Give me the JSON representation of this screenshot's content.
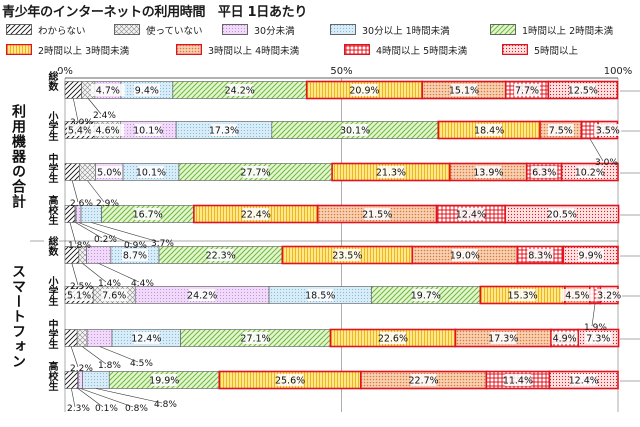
{
  "title": "青少年のインターネットの利用時間　平日 1日あたり",
  "legend": [
    {
      "label": "わからない",
      "pattern": "diag-black"
    },
    {
      "label": "使っていない",
      "pattern": "cross-grey"
    },
    {
      "label": "30分未満",
      "pattern": "dots-purple"
    },
    {
      "label": "30分以上 1時間未満",
      "pattern": "dots-blue"
    },
    {
      "label": "1時間以上 2時間未満",
      "pattern": "diag-green"
    },
    {
      "label": "2時間以上 3時間未満",
      "pattern": "vert-yellow"
    },
    {
      "label": "3時間以上 4時間未満",
      "pattern": "dots-orange"
    },
    {
      "label": "4時間以上 5時間未満",
      "pattern": "grid-red"
    },
    {
      "label": "5時間以上",
      "pattern": "dots-red"
    }
  ],
  "groups": [
    {
      "label": "利用機器の合計"
    },
    {
      "label": "スマートフォン"
    }
  ],
  "chart_data": {
    "type": "bar",
    "orientation": "horizontal-stacked-100",
    "x_ticks": [
      "0%",
      "50%",
      "100%"
    ],
    "xlim": [
      0,
      100
    ],
    "categories": [
      "総数",
      "小学生",
      "中学生",
      "高校生",
      "総数",
      "小学生",
      "中学生",
      "高校生"
    ],
    "category_groups": [
      "利用機器の合計",
      "利用機器の合計",
      "利用機器の合計",
      "利用機器の合計",
      "スマートフォン",
      "スマートフォン",
      "スマートフォン",
      "スマートフォン"
    ],
    "series": [
      {
        "name": "わからない",
        "values": [
          3.0,
          5.4,
          2.6,
          1.8,
          2.5,
          5.1,
          2.2,
          2.3
        ]
      },
      {
        "name": "使っていない",
        "values": [
          2.4,
          4.6,
          2.9,
          0.2,
          1.4,
          7.6,
          1.8,
          0.1
        ]
      },
      {
        "name": "30分未満",
        "values": [
          4.7,
          10.1,
          5.0,
          0.9,
          4.4,
          24.2,
          4.5,
          0.8
        ]
      },
      {
        "name": "30分以上 1時間未満",
        "values": [
          9.4,
          17.3,
          10.1,
          3.7,
          8.7,
          18.5,
          12.4,
          4.8
        ]
      },
      {
        "name": "1時間以上 2時間未満",
        "values": [
          24.2,
          30.1,
          27.7,
          16.7,
          22.3,
          19.7,
          27.1,
          19.9
        ]
      },
      {
        "name": "2時間以上 3時間未満",
        "values": [
          20.9,
          18.4,
          21.3,
          22.4,
          23.5,
          15.3,
          22.6,
          25.6
        ]
      },
      {
        "name": "3時間以上 4時間未満",
        "values": [
          15.1,
          7.5,
          13.9,
          21.5,
          19.0,
          4.5,
          17.3,
          22.7
        ]
      },
      {
        "name": "4時間以上 5時間未満",
        "values": [
          7.7,
          3.0,
          6.3,
          12.4,
          8.3,
          1.9,
          4.9,
          11.4
        ]
      },
      {
        "name": "5時間以上",
        "values": [
          12.5,
          3.5,
          10.2,
          20.5,
          9.9,
          3.2,
          7.3,
          12.4
        ]
      }
    ],
    "bar_labels": [
      [
        {
          "t": "3.0%",
          "ext": 1
        },
        {
          "t": "2.4%",
          "ext": 1
        },
        {
          "t": "4.7%"
        },
        {
          "t": "9.4%"
        },
        {
          "t": "24.2%"
        },
        {
          "t": "20.9%"
        },
        {
          "t": "15.1%"
        },
        {
          "t": "7.7%"
        },
        {
          "t": "12.5%"
        }
      ],
      [
        {
          "t": "5.4%"
        },
        {
          "t": "4.6%"
        },
        {
          "t": "10.1%"
        },
        {
          "t": "17.3%"
        },
        {
          "t": "30.1%"
        },
        {
          "t": "18.4%"
        },
        {
          "t": "7.5%"
        },
        {
          "t": "3.0%",
          "ext": 1
        },
        {
          "t": "3.5%"
        }
      ],
      [
        {
          "t": "2.6%",
          "ext": 1
        },
        {
          "t": "2.9%",
          "ext": 1
        },
        {
          "t": "5.0%"
        },
        {
          "t": "10.1%"
        },
        {
          "t": "27.7%"
        },
        {
          "t": "21.3%"
        },
        {
          "t": "13.9%"
        },
        {
          "t": "6.3%"
        },
        {
          "t": "10.2%"
        }
      ],
      [
        {
          "t": "1.8%",
          "ext": 1
        },
        {
          "t": "0.2%",
          "ext": 1
        },
        {
          "t": "0.9%",
          "ext": 1
        },
        {
          "t": "3.7%",
          "ext": 1
        },
        {
          "t": "16.7%"
        },
        {
          "t": "22.4%"
        },
        {
          "t": "21.5%"
        },
        {
          "t": "12.4%"
        },
        {
          "t": "20.5%"
        }
      ],
      [
        {
          "t": "2.5%",
          "ext": 1
        },
        {
          "t": "1.4%",
          "ext": 1
        },
        {
          "t": "4.4%",
          "ext": 1
        },
        {
          "t": "8.7%"
        },
        {
          "t": "22.3%"
        },
        {
          "t": "23.5%"
        },
        {
          "t": "19.0%"
        },
        {
          "t": "8.3%"
        },
        {
          "t": "9.9%"
        }
      ],
      [
        {
          "t": "5.1%"
        },
        {
          "t": "7.6%"
        },
        {
          "t": "24.2%"
        },
        {
          "t": "18.5%"
        },
        {
          "t": "19.7%"
        },
        {
          "t": "15.3%"
        },
        {
          "t": "4.5%"
        },
        {
          "t": "1.9%",
          "ext": 1
        },
        {
          "t": "3.2%"
        }
      ],
      [
        {
          "t": "2.2%",
          "ext": 1
        },
        {
          "t": "1.8%",
          "ext": 1
        },
        {
          "t": "4.5%",
          "ext": 1
        },
        {
          "t": "12.4%"
        },
        {
          "t": "27.1%"
        },
        {
          "t": "22.6%"
        },
        {
          "t": "17.3%"
        },
        {
          "t": "4.9%"
        },
        {
          "t": "7.3%"
        }
      ],
      [
        {
          "t": "2.3%",
          "ext": 1
        },
        {
          "t": "0.1%",
          "ext": 1
        },
        {
          "t": "0.8%",
          "ext": 1
        },
        {
          "t": "4.8%",
          "ext": 1
        },
        {
          "t": "19.9%"
        },
        {
          "t": "25.6%"
        },
        {
          "t": "22.7%"
        },
        {
          "t": "11.4%"
        },
        {
          "t": "12.4%"
        }
      ]
    ],
    "highlight_border_color": "#e0141e",
    "grid": true
  }
}
